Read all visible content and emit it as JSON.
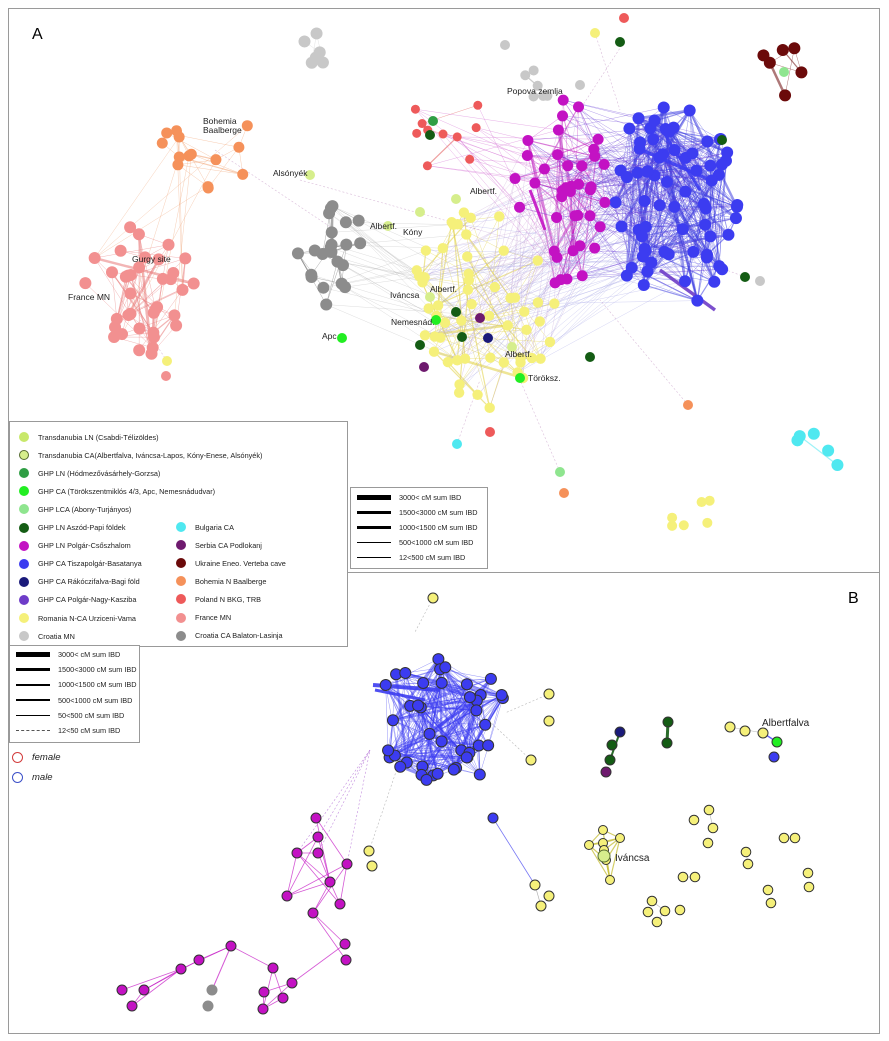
{
  "panel_a_letter": "A",
  "panel_b_letter": "B",
  "colors": {
    "trans_ln": "#c8e86a",
    "trans_ca": "#d6ee8c",
    "ghp_ln": "#2f9e44",
    "ghp_ca": "#22ee22",
    "ghp_lca": "#8fe58f",
    "aszod": "#145c14",
    "polgar": "#c312c3",
    "tiszapolgar": "#3c3cf0",
    "rakoczifalva": "#1a1a7a",
    "nagykasziba": "#6e3cc8",
    "romania": "#f5f07a",
    "croatia_mn": "#c8c8c8",
    "bulgaria": "#4fe8f0",
    "serbia": "#6e1a6e",
    "ukraine": "#6b0a0a",
    "bohemia": "#f5915a",
    "poland": "#ee5a5a",
    "france": "#f29090",
    "croatia_ca": "#8c8c8c"
  },
  "group_legend": [
    {
      "label": "Transdanubia LN (Csabdi-Télizöldes)",
      "color_key": "trans_ln",
      "ring": false
    },
    {
      "label": "Transdanubia CA(Albertfalva, Iváncsa-Lapos, Kóny-Enese, Alsónyék)",
      "color_key": "trans_ca",
      "ring": true
    },
    {
      "label": "GHP LN (Hódmezővásárhely-Gorzsa)",
      "color_key": "ghp_ln",
      "ring": false
    },
    {
      "label": "GHP CA (Törökszentmiklós 4/3, Apc, Nemesnádudvar)",
      "color_key": "ghp_ca",
      "ring": false
    },
    {
      "label": "GHP LCA (Abony-Turjányos)",
      "color_key": "ghp_lca",
      "ring": false
    },
    {
      "label": "GHP LN Aszód-Papi földek",
      "color_key": "aszod",
      "ring": false
    },
    {
      "label": "GHP LN Polgár-Csőszhalom",
      "color_key": "polgar",
      "ring": false
    },
    {
      "label": "GHP CA Tiszapolgár-Basatanya",
      "color_key": "tiszapolgar",
      "ring": false
    },
    {
      "label": "GHP CA Rákóczifalva-Bagi föld",
      "color_key": "rakoczifalva",
      "ring": false
    },
    {
      "label": "GHP CA Polgár-Nagy-Kasziba",
      "color_key": "nagykasziba",
      "ring": false
    },
    {
      "label": "Romania N-CA Urziceni-Vama",
      "color_key": "romania",
      "ring": false
    },
    {
      "label": "Croatia MN",
      "color_key": "croatia_mn",
      "ring": false
    },
    {
      "label": "Bulgaria CA",
      "color_key": "bulgaria",
      "ring": false
    },
    {
      "label": "Serbia CA Podlokanj",
      "color_key": "serbia",
      "ring": false
    },
    {
      "label": "Ukraine Eneo. Verteba cave",
      "color_key": "ukraine",
      "ring": false
    },
    {
      "label": "Bohemia N Baalberge",
      "color_key": "bohemia",
      "ring": false
    },
    {
      "label": "Poland N BKG, TRB",
      "color_key": "poland",
      "ring": false
    },
    {
      "label": "France MN",
      "color_key": "france",
      "ring": false
    },
    {
      "label": "Croatia CA Balaton-Lasinja",
      "color_key": "croatia_ca",
      "ring": false
    }
  ],
  "ibd_legend_a": [
    {
      "label": "3000< cM sum IBD",
      "w": 5
    },
    {
      "label": "1500<3000 cM sum IBD",
      "w": 3.5
    },
    {
      "label": "1000<1500 cM sum IBD",
      "w": 2.5
    },
    {
      "label": "500<1000 cM sum IBD",
      "w": 1.5
    },
    {
      "label": "12<500 cM sum IBD",
      "w": 0.8
    }
  ],
  "ibd_legend_b": [
    {
      "label": "3000< cM sum IBD",
      "w": 5
    },
    {
      "label": "1500<3000 cM sum IBD",
      "w": 3.5
    },
    {
      "label": "1000<1500 cM sum IBD",
      "w": 2.5
    },
    {
      "label": "500<1000 cM sum IBD",
      "w": 1.5
    },
    {
      "label": "50<500 cM sum IBD",
      "w": 0.8
    },
    {
      "label": "12<50 cM sum IBD",
      "w": 0,
      "dashed": true
    }
  ],
  "sex_legend": {
    "female": "female",
    "male": "male",
    "female_color": "#d23c3c",
    "male_color": "#3c50c8"
  },
  "panel_a_labels": [
    "Bohemia",
    "Baalberge",
    "Gurgy site",
    "France MN",
    "Alsónyék",
    "Popova zemlja",
    "Albertf.",
    "Albertf.",
    "Kóny",
    "Iváncsa",
    "Albertf.",
    "Nemesnád.",
    "Apc",
    "Albertf.",
    "Töröksz."
  ],
  "panel_b_labels": [
    "Albertfalva",
    "Iváncsa"
  ]
}
